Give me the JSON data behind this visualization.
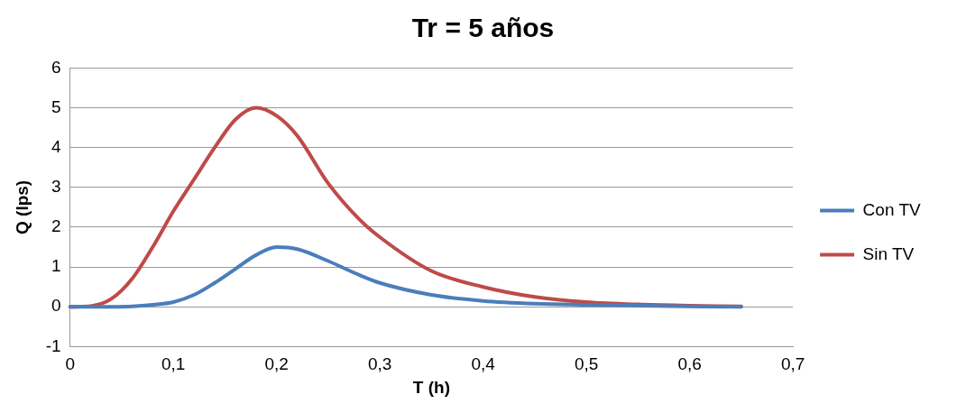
{
  "chart_data": {
    "type": "line",
    "title": "Tr = 5 años",
    "xlabel": "T (h)",
    "ylabel": "Q (lps)",
    "xlim": [
      0,
      0.7
    ],
    "xticks": [
      0,
      {
        "value": 0.1,
        "label": "0,1"
      },
      {
        "value": 0.2,
        "label": "0,2"
      },
      {
        "value": 0.3,
        "label": "0,3"
      },
      {
        "value": 0.4,
        "label": "0,4"
      },
      {
        "value": 0.5,
        "label": "0,5"
      },
      {
        "value": 0.6,
        "label": "0,6"
      },
      {
        "value": 0.7,
        "label": "0,7"
      }
    ],
    "ylim": [
      -1,
      6
    ],
    "yticks": [
      -1,
      0,
      1,
      2,
      3,
      4,
      5,
      6
    ],
    "grid": "y",
    "legend": "right",
    "marker": "none",
    "line_style": "solid",
    "series": [
      {
        "name": "Con TV",
        "color": "#4a7ebb",
        "x": [
          0,
          0.02,
          0.04,
          0.06,
          0.08,
          0.1,
          0.12,
          0.14,
          0.16,
          0.18,
          0.2,
          0.22,
          0.25,
          0.28,
          0.3,
          0.35,
          0.4,
          0.45,
          0.5,
          0.55,
          0.6,
          0.65
        ],
        "values": [
          0,
          0,
          0,
          0.01,
          0.05,
          0.12,
          0.3,
          0.6,
          0.95,
          1.3,
          1.5,
          1.45,
          1.15,
          0.8,
          0.6,
          0.3,
          0.15,
          0.08,
          0.05,
          0.03,
          0.01,
          0
        ]
      },
      {
        "name": "Sin TV",
        "color": "#be4b48",
        "x": [
          0,
          0.02,
          0.04,
          0.06,
          0.08,
          0.1,
          0.12,
          0.14,
          0.16,
          0.18,
          0.2,
          0.22,
          0.25,
          0.28,
          0.3,
          0.35,
          0.4,
          0.45,
          0.5,
          0.55,
          0.6,
          0.65
        ],
        "values": [
          0,
          0.02,
          0.2,
          0.7,
          1.5,
          2.4,
          3.2,
          4.0,
          4.7,
          5.0,
          4.8,
          4.3,
          3.1,
          2.2,
          1.75,
          0.9,
          0.5,
          0.25,
          0.12,
          0.06,
          0.03,
          0.01
        ]
      }
    ]
  }
}
